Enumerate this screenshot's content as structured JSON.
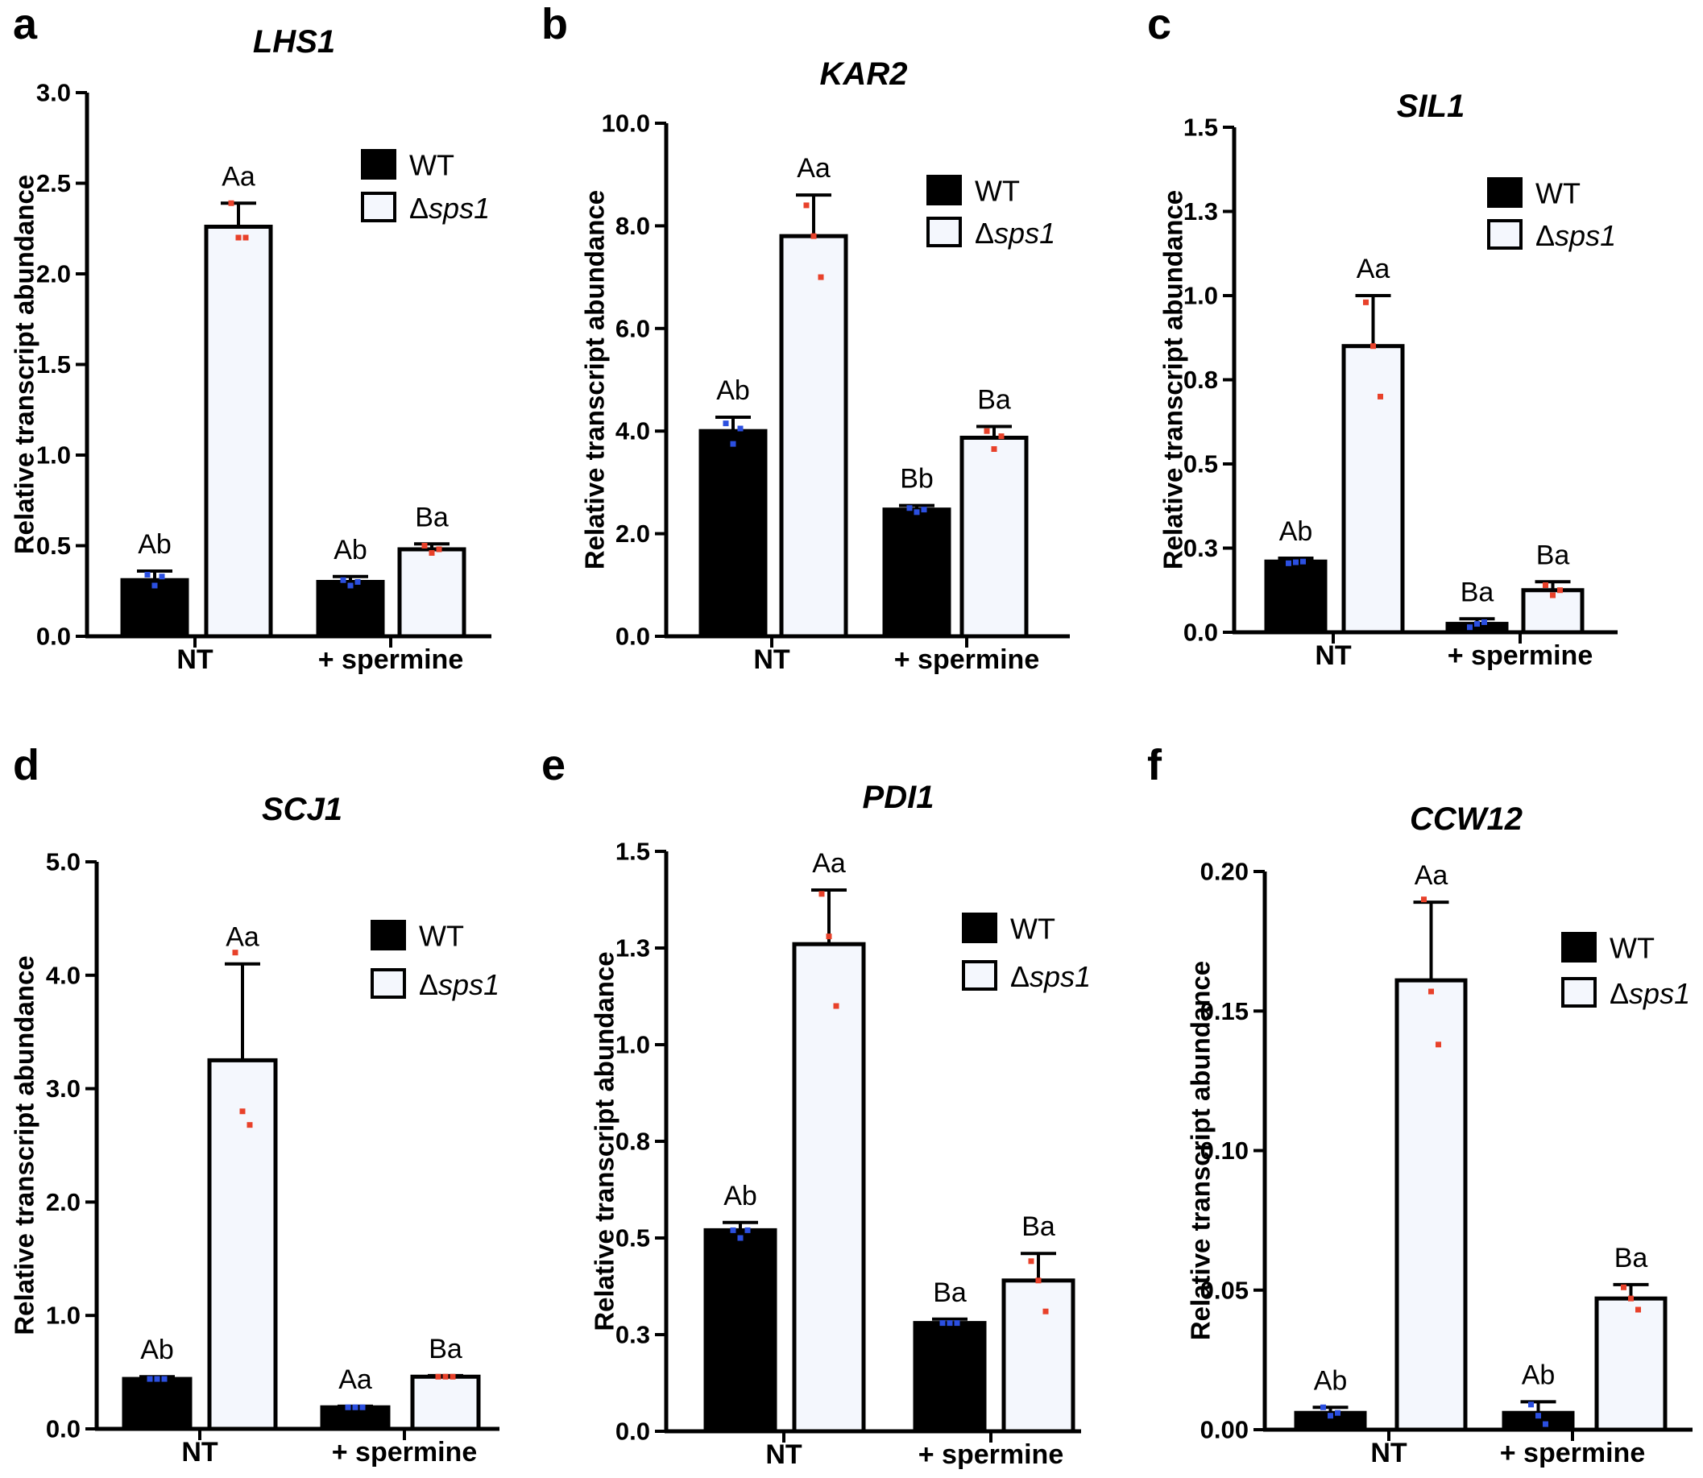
{
  "figure": {
    "legend": {
      "wt": "WT",
      "mut_symbol": "Δ",
      "mut_name": "sps1"
    },
    "ylabel": "Relative transcript abundance",
    "categories": [
      "NT",
      "+ spermine"
    ],
    "colors": {
      "wt_fill": "#000000",
      "mut_fill": "#f4f7fd",
      "wt_dot": "#2b4fe0",
      "mut_dot": "#e8412a"
    }
  },
  "chart_data": [
    {
      "panel": "a",
      "type": "bar",
      "title": "LHS1",
      "ylabel": "Relative transcript abundance",
      "categories": [
        "NT",
        "+ spermine"
      ],
      "ylim": [
        0,
        3.0
      ],
      "yticks": [
        0,
        0.5,
        1.0,
        1.5,
        2.0,
        2.5,
        3.0
      ],
      "ytick_labels": [
        "0.0",
        "0.5",
        "1.0",
        "1.5",
        "2.0",
        "2.5",
        "3.0"
      ],
      "series": [
        {
          "name": "WT",
          "values": [
            0.31,
            0.3
          ],
          "err": [
            0.05,
            0.03
          ],
          "sig": [
            "Ab",
            "Ab"
          ],
          "points": [
            [
              0.34,
              0.28,
              0.33
            ],
            [
              0.31,
              0.28,
              0.3
            ]
          ]
        },
        {
          "name": "Δsps1",
          "values": [
            2.26,
            0.48
          ],
          "err": [
            0.13,
            0.03
          ],
          "sig": [
            "Aa",
            "Ba"
          ],
          "points": [
            [
              2.39,
              2.2,
              2.2
            ],
            [
              0.5,
              0.46,
              0.48
            ]
          ]
        }
      ]
    },
    {
      "panel": "b",
      "type": "bar",
      "title": "KAR2",
      "ylabel": "Relative transcript abundance",
      "categories": [
        "NT",
        "+ spermine"
      ],
      "ylim": [
        0,
        10.0
      ],
      "yticks": [
        0,
        2,
        4,
        6,
        8,
        10
      ],
      "ytick_labels": [
        "0.0",
        "2.0",
        "4.0",
        "6.0",
        "8.0",
        "10.0"
      ],
      "series": [
        {
          "name": "WT",
          "values": [
            4.0,
            2.47
          ],
          "err": [
            0.27,
            0.08
          ],
          "sig": [
            "Ab",
            "Bb"
          ],
          "points": [
            [
              4.15,
              3.75,
              4.05
            ],
            [
              2.5,
              2.42,
              2.47
            ]
          ]
        },
        {
          "name": "Δsps1",
          "values": [
            7.8,
            3.87
          ],
          "err": [
            0.8,
            0.22
          ],
          "sig": [
            "Aa",
            "Ba"
          ],
          "points": [
            [
              8.4,
              7.8,
              7.0
            ],
            [
              4.0,
              3.65,
              3.9
            ]
          ]
        }
      ]
    },
    {
      "panel": "c",
      "type": "bar",
      "title": "SIL1",
      "ylabel": "Relative transcript abundance",
      "categories": [
        "NT",
        "+ spermine"
      ],
      "ylim": [
        0,
        1.5
      ],
      "yticks": [
        0,
        0.25,
        0.5,
        0.75,
        1.0,
        1.25,
        1.5
      ],
      "ytick_labels": [
        "0.0",
        "0.3",
        "0.5",
        "0.8",
        "1.0",
        "1.3",
        "1.5"
      ],
      "series": [
        {
          "name": "WT",
          "values": [
            0.21,
            0.025
          ],
          "err": [
            0.01,
            0.015
          ],
          "sig": [
            "Ab",
            "Ba"
          ],
          "points": [
            [
              0.205,
              0.208,
              0.21
            ],
            [
              0.015,
              0.025,
              0.03
            ]
          ]
        },
        {
          "name": "Δsps1",
          "values": [
            0.85,
            0.125
          ],
          "err": [
            0.15,
            0.025
          ],
          "sig": [
            "Aa",
            "Ba"
          ],
          "points": [
            [
              0.98,
              0.85,
              0.7
            ],
            [
              0.14,
              0.11,
              0.125
            ]
          ]
        }
      ]
    },
    {
      "panel": "d",
      "type": "bar",
      "title": "SCJ1",
      "ylabel": "Relative transcript abundance",
      "categories": [
        "NT",
        "+ spermine"
      ],
      "ylim": [
        0,
        5.0
      ],
      "yticks": [
        0,
        1,
        2,
        3,
        4,
        5
      ],
      "ytick_labels": [
        "0.0",
        "1.0",
        "2.0",
        "3.0",
        "4.0",
        "5.0"
      ],
      "series": [
        {
          "name": "WT",
          "values": [
            0.44,
            0.19
          ],
          "err": [
            0.02,
            0.01
          ],
          "sig": [
            "Ab",
            "Aa"
          ],
          "points": [
            [
              0.44,
              0.44,
              0.44
            ],
            [
              0.19,
              0.19,
              0.19
            ]
          ]
        },
        {
          "name": "Δsps1",
          "values": [
            3.25,
            0.46
          ],
          "err": [
            0.85,
            0.01
          ],
          "sig": [
            "Aa",
            "Ba"
          ],
          "points": [
            [
              4.2,
              2.8,
              2.68
            ],
            [
              0.46,
              0.46,
              0.46
            ]
          ]
        }
      ]
    },
    {
      "panel": "e",
      "type": "bar",
      "title": "PDI1",
      "ylabel": "Relative transcript abundance",
      "categories": [
        "NT",
        "+ spermine"
      ],
      "ylim": [
        0,
        1.5
      ],
      "yticks": [
        0,
        0.25,
        0.5,
        0.75,
        1.0,
        1.25,
        1.5
      ],
      "ytick_labels": [
        "0.0",
        "0.3",
        "0.5",
        "0.8",
        "1.0",
        "1.3",
        "1.5"
      ],
      "series": [
        {
          "name": "WT",
          "values": [
            0.52,
            0.28
          ],
          "err": [
            0.02,
            0.01
          ],
          "sig": [
            "Ab",
            "Ba"
          ],
          "points": [
            [
              0.52,
              0.5,
              0.52
            ],
            [
              0.28,
              0.28,
              0.28
            ]
          ]
        },
        {
          "name": "Δsps1",
          "values": [
            1.26,
            0.39
          ],
          "err": [
            0.14,
            0.07
          ],
          "sig": [
            "Aa",
            "Ba"
          ],
          "points": [
            [
              1.39,
              1.28,
              1.1
            ],
            [
              0.44,
              0.39,
              0.31
            ]
          ]
        }
      ]
    },
    {
      "panel": "f",
      "type": "bar",
      "title": "CCW12",
      "ylabel": "Relative transcript abundance",
      "categories": [
        "NT",
        "+ spermine"
      ],
      "ylim": [
        0,
        0.2
      ],
      "yticks": [
        0,
        0.05,
        0.1,
        0.15,
        0.2
      ],
      "ytick_labels": [
        "0.00",
        "0.05",
        "0.10",
        "0.15",
        "0.20"
      ],
      "series": [
        {
          "name": "WT",
          "values": [
            0.006,
            0.006
          ],
          "err": [
            0.002,
            0.004
          ],
          "sig": [
            "Ab",
            "Ab"
          ],
          "points": [
            [
              0.008,
              0.005,
              0.006
            ],
            [
              0.009,
              0.005,
              0.002
            ]
          ]
        },
        {
          "name": "Δsps1",
          "values": [
            0.161,
            0.047
          ],
          "err": [
            0.028,
            0.005
          ],
          "sig": [
            "Aa",
            "Ba"
          ],
          "points": [
            [
              0.19,
              0.157,
              0.138
            ],
            [
              0.051,
              0.047,
              0.043
            ]
          ]
        }
      ]
    }
  ]
}
